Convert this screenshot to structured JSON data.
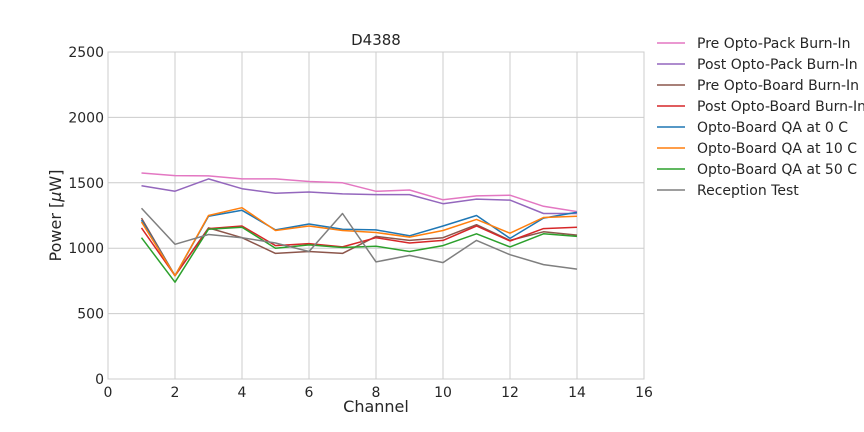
{
  "chart_data": {
    "type": "line",
    "title": "D4388",
    "xlabel": "Channel",
    "ylabel": "Power [μW]",
    "ylabel_plain": "Power [",
    "ylabel_mu": "μ",
    "ylabel_unit": "W]",
    "xlim": [
      0,
      16
    ],
    "ylim": [
      0,
      2500
    ],
    "xticks": [
      0,
      2,
      4,
      6,
      8,
      10,
      12,
      14,
      16
    ],
    "yticks": [
      0,
      500,
      1000,
      1500,
      2000,
      2500
    ],
    "grid": true,
    "legend_position": "outside-right",
    "x": [
      1,
      2,
      3,
      4,
      5,
      6,
      7,
      8,
      9,
      10,
      11,
      12,
      13,
      14
    ],
    "series": [
      {
        "name": "Pre Opto-Pack Burn-In",
        "color": "#e377c2",
        "values": [
          1575,
          1555,
          1553,
          1530,
          1530,
          1510,
          1500,
          1435,
          1445,
          1370,
          1400,
          1405,
          1320,
          1280
        ]
      },
      {
        "name": "Post Opto-Pack Burn-In",
        "color": "#9467bd",
        "values": [
          1478,
          1436,
          1530,
          1455,
          1420,
          1430,
          1415,
          1410,
          1410,
          1340,
          1375,
          1368,
          1265,
          1265
        ]
      },
      {
        "name": "Pre Opto-Board Burn-In",
        "color": "#8c564b",
        "values": [
          1230,
          790,
          1155,
          1080,
          960,
          975,
          960,
          1090,
          1060,
          1080,
          1180,
          1060,
          1125,
          1100
        ]
      },
      {
        "name": "Post Opto-Board Burn-In",
        "color": "#d62728",
        "values": [
          1155,
          790,
          1150,
          1170,
          1020,
          1035,
          1010,
          1080,
          1040,
          1060,
          1170,
          1055,
          1150,
          1160
        ]
      },
      {
        "name": "Opto-Board QA at 0 C",
        "color": "#1f77b4",
        "values": [
          1215,
          790,
          1245,
          1290,
          1140,
          1185,
          1145,
          1140,
          1095,
          1170,
          1250,
          1075,
          1230,
          1275
        ]
      },
      {
        "name": "Opto-Board QA at 10 C",
        "color": "#ff7f0e",
        "values": [
          1200,
          790,
          1250,
          1310,
          1135,
          1170,
          1135,
          1120,
          1085,
          1135,
          1220,
          1115,
          1235,
          1245
        ]
      },
      {
        "name": "Opto-Board QA at 50 C",
        "color": "#2ca02c",
        "values": [
          1080,
          740,
          1145,
          1160,
          1000,
          1025,
          1005,
          1015,
          975,
          1020,
          1110,
          1010,
          1110,
          1090
        ]
      },
      {
        "name": "Reception Test",
        "color": "#7f7f7f",
        "values": [
          1305,
          1030,
          1105,
          1080,
          1040,
          975,
          1265,
          895,
          945,
          890,
          1060,
          950,
          875,
          840
        ]
      }
    ]
  }
}
